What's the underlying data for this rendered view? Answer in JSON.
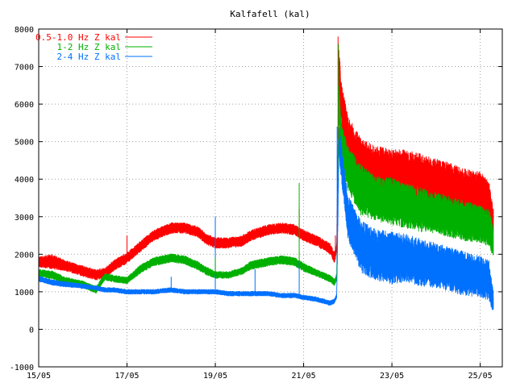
{
  "chart_data": {
    "type": "line",
    "title": "Kalfafell (kal)",
    "xlabel": "",
    "ylabel": "",
    "x_unit": "day of May (date)",
    "xlim": [
      15.0,
      25.5
    ],
    "ylim": [
      -1000,
      8000
    ],
    "yticks": [
      -1000,
      0,
      1000,
      2000,
      3000,
      4000,
      5000,
      6000,
      7000,
      8000
    ],
    "xticks": [
      "15/05",
      "17/05",
      "19/05",
      "21/05",
      "23/05",
      "25/05"
    ],
    "xtick_values": [
      15,
      17,
      19,
      21,
      23,
      25
    ],
    "grid": true,
    "legend_position": "top-left",
    "series": [
      {
        "name": "0.5-1.0 Hz Z kal",
        "color": "#ff0000",
        "x": [
          15.0,
          15.3,
          15.6,
          16.0,
          16.3,
          16.5,
          16.7,
          17.0,
          17.3,
          17.6,
          18.0,
          18.3,
          18.6,
          18.8,
          19.0,
          19.3,
          19.6,
          19.8,
          20.2,
          20.5,
          20.8,
          21.0,
          21.3,
          21.6,
          21.7,
          21.75,
          21.8,
          21.85,
          22.0,
          22.3,
          22.6,
          23.0,
          23.3,
          23.6,
          24.0,
          24.3,
          24.6,
          25.0,
          25.2,
          25.3
        ],
        "y": [
          1800,
          1800,
          1700,
          1550,
          1450,
          1500,
          1700,
          1900,
          2200,
          2500,
          2700,
          2700,
          2600,
          2400,
          2300,
          2300,
          2350,
          2500,
          2650,
          2700,
          2650,
          2500,
          2350,
          2150,
          1900,
          2200,
          7000,
          6000,
          5000,
          4300,
          4200,
          4100,
          4100,
          4000,
          3900,
          3800,
          3700,
          3600,
          3400,
          2800
        ],
        "spread": [
          150,
          200,
          150,
          150,
          150,
          150,
          150,
          150,
          150,
          150,
          150,
          150,
          150,
          150,
          150,
          150,
          150,
          150,
          150,
          150,
          150,
          150,
          150,
          150,
          150,
          150,
          600,
          600,
          700,
          800,
          700,
          700,
          700,
          700,
          650,
          650,
          600,
          600,
          600,
          400
        ]
      },
      {
        "name": "1-2 Hz Z kal",
        "color": "#00b000",
        "x": [
          15.0,
          15.3,
          15.6,
          16.0,
          16.3,
          16.5,
          16.7,
          17.0,
          17.3,
          17.6,
          18.0,
          18.3,
          18.6,
          18.8,
          19.0,
          19.3,
          19.6,
          19.8,
          20.2,
          20.5,
          20.8,
          21.0,
          21.3,
          21.6,
          21.7,
          21.75,
          21.8,
          21.85,
          22.0,
          22.3,
          22.6,
          23.0,
          23.3,
          23.6,
          24.0,
          24.3,
          24.6,
          25.0,
          25.2,
          25.3
        ],
        "y": [
          1500,
          1450,
          1300,
          1200,
          1050,
          1400,
          1350,
          1300,
          1600,
          1800,
          1900,
          1850,
          1700,
          1550,
          1450,
          1450,
          1550,
          1700,
          1800,
          1850,
          1800,
          1650,
          1500,
          1350,
          1250,
          1400,
          6000,
          5000,
          4300,
          3700,
          3500,
          3400,
          3300,
          3200,
          3100,
          3000,
          2900,
          2800,
          2700,
          2300
        ],
        "spread": [
          100,
          120,
          100,
          100,
          100,
          100,
          100,
          100,
          120,
          120,
          120,
          120,
          120,
          120,
          100,
          100,
          100,
          120,
          120,
          120,
          120,
          120,
          100,
          100,
          100,
          100,
          500,
          500,
          600,
          700,
          600,
          650,
          600,
          600,
          550,
          550,
          550,
          500,
          500,
          400
        ]
      },
      {
        "name": "2-4 Hz Z kal",
        "color": "#0070ff",
        "x": [
          15.0,
          15.3,
          15.6,
          16.0,
          16.3,
          16.5,
          16.7,
          17.0,
          17.3,
          17.6,
          18.0,
          18.3,
          18.6,
          18.8,
          19.0,
          19.3,
          19.6,
          19.8,
          20.2,
          20.5,
          20.8,
          21.0,
          21.3,
          21.6,
          21.7,
          21.75,
          21.8,
          21.85,
          22.0,
          22.3,
          22.6,
          23.0,
          23.3,
          23.6,
          24.0,
          24.3,
          24.6,
          25.0,
          25.2,
          25.3
        ],
        "y": [
          1350,
          1250,
          1200,
          1150,
          1100,
          1050,
          1050,
          1000,
          1000,
          1000,
          1050,
          1000,
          1000,
          1000,
          1000,
          950,
          950,
          950,
          950,
          900,
          900,
          850,
          800,
          700,
          750,
          900,
          5000,
          4500,
          3000,
          2200,
          2000,
          1900,
          1900,
          1800,
          1700,
          1600,
          1500,
          1400,
          1300,
          700
        ],
        "spread": [
          80,
          80,
          80,
          70,
          70,
          70,
          70,
          70,
          70,
          70,
          70,
          70,
          70,
          70,
          70,
          70,
          70,
          70,
          70,
          70,
          70,
          70,
          70,
          70,
          70,
          70,
          500,
          500,
          600,
          700,
          700,
          700,
          650,
          650,
          600,
          600,
          600,
          550,
          550,
          300
        ]
      }
    ],
    "spikes": [
      {
        "series": 2,
        "x": 15.0,
        "y": 1700
      },
      {
        "series": 0,
        "x": 17.0,
        "y": 2500
      },
      {
        "series": 2,
        "x": 18.0,
        "y": 1400
      },
      {
        "series": 2,
        "x": 19.0,
        "y": 3000
      },
      {
        "series": 1,
        "x": 19.0,
        "y": 1900
      },
      {
        "series": 2,
        "x": 19.9,
        "y": 1600
      },
      {
        "series": 0,
        "x": 20.9,
        "y": 3200
      },
      {
        "series": 1,
        "x": 20.9,
        "y": 3900
      },
      {
        "series": 2,
        "x": 20.9,
        "y": 1800
      },
      {
        "series": 0,
        "x": 21.72,
        "y": 2500
      },
      {
        "series": 0,
        "x": 21.78,
        "y": 7800
      },
      {
        "series": 1,
        "x": 21.79,
        "y": 7600
      },
      {
        "series": 2,
        "x": 21.76,
        "y": 5400
      }
    ]
  }
}
